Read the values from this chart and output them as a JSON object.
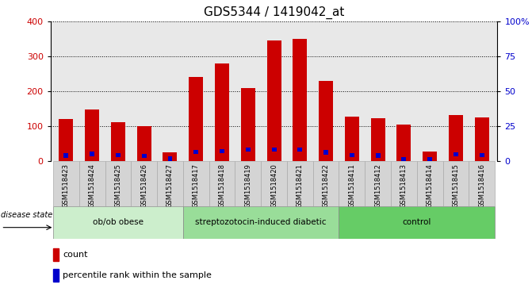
{
  "title": "GDS5344 / 1419042_at",
  "samples": [
    "GSM1518423",
    "GSM1518424",
    "GSM1518425",
    "GSM1518426",
    "GSM1518427",
    "GSM1518417",
    "GSM1518418",
    "GSM1518419",
    "GSM1518420",
    "GSM1518421",
    "GSM1518422",
    "GSM1518411",
    "GSM1518412",
    "GSM1518413",
    "GSM1518414",
    "GSM1518415",
    "GSM1518416"
  ],
  "count_values": [
    120,
    148,
    113,
    100,
    25,
    242,
    280,
    210,
    347,
    350,
    230,
    128,
    123,
    105,
    28,
    132,
    125
  ],
  "percentile_values": [
    16.5,
    21.0,
    18.0,
    15.5,
    7.5,
    27.5,
    29.5,
    33.0,
    33.75,
    33.25,
    25.5,
    18.25,
    16.75,
    0,
    7.0,
    20.75,
    17.5
  ],
  "groups": [
    {
      "label": "ob/ob obese",
      "start": 0,
      "end": 4
    },
    {
      "label": "streptozotocin-induced diabetic",
      "start": 5,
      "end": 10
    },
    {
      "label": "control",
      "start": 11,
      "end": 16
    }
  ],
  "group_colors": [
    "#cceecc",
    "#99dd99",
    "#66cc66"
  ],
  "ylim_left": [
    0,
    400
  ],
  "ylim_right": [
    0,
    100
  ],
  "yticks_left": [
    0,
    100,
    200,
    300,
    400
  ],
  "yticks_right": [
    0,
    25,
    50,
    75,
    100
  ],
  "count_color": "#cc0000",
  "percentile_color": "#0000cc",
  "plot_bg_color": "#e8e8e8",
  "xtick_bg_color": "#d0d0d0",
  "title_fontsize": 11,
  "bar_width": 0.55,
  "pct_bar_width": 0.18,
  "pct_bar_height": 12
}
